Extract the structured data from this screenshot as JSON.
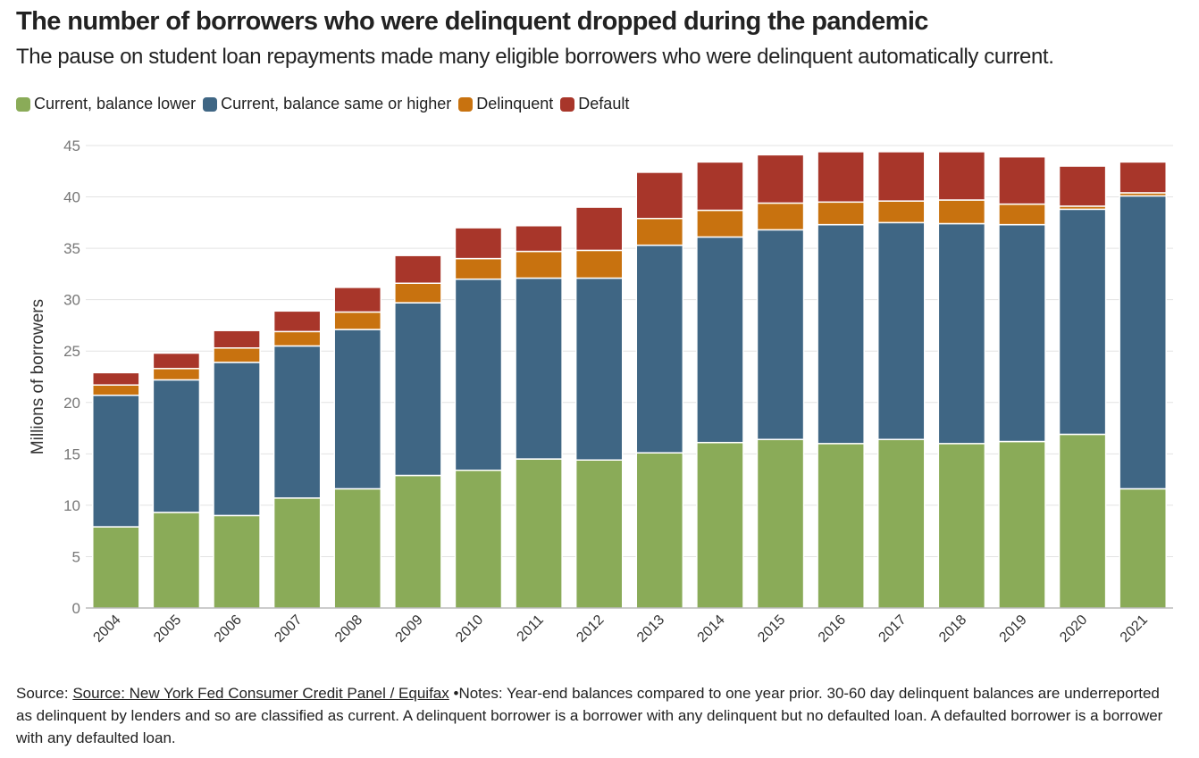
{
  "chart_data": {
    "type": "stacked_bar",
    "title": "The number of borrowers who were delinquent dropped during the pandemic",
    "subtitle": "The pause on student loan repayments made many eligible borrowers who were delinquent automatically current.",
    "y_label": "Millions of borrowers",
    "categories": [
      "2004",
      "2005",
      "2006",
      "2007",
      "2008",
      "2009",
      "2010",
      "2011",
      "2012",
      "2013",
      "2014",
      "2015",
      "2016",
      "2017",
      "2018",
      "2019",
      "2020",
      "2021"
    ],
    "series": [
      {
        "name": "Current, balance lower",
        "color": "#8aab58",
        "values": [
          7.9,
          9.3,
          9.0,
          10.7,
          11.6,
          12.9,
          13.4,
          14.5,
          14.4,
          15.1,
          16.1,
          16.4,
          16.0,
          16.4,
          16.0,
          16.2,
          16.9,
          11.6
        ]
      },
      {
        "name": "Current, balance same or higher",
        "color": "#3f6684",
        "values": [
          12.8,
          12.9,
          14.9,
          14.8,
          15.5,
          16.8,
          18.6,
          17.6,
          17.7,
          20.2,
          20.0,
          20.4,
          21.3,
          21.1,
          21.4,
          21.1,
          21.9,
          28.5
        ]
      },
      {
        "name": "Delinquent",
        "color": "#c8720f",
        "values": [
          1.0,
          1.1,
          1.4,
          1.4,
          1.7,
          1.9,
          2.0,
          2.6,
          2.7,
          2.6,
          2.6,
          2.6,
          2.2,
          2.1,
          2.3,
          2.0,
          0.3,
          0.3
        ]
      },
      {
        "name": "Default",
        "color": "#a8362a",
        "values": [
          1.2,
          1.5,
          1.7,
          2.0,
          2.4,
          2.7,
          3.0,
          2.5,
          4.2,
          4.5,
          4.7,
          4.7,
          4.9,
          4.8,
          4.7,
          4.6,
          3.9,
          3.0
        ]
      }
    ],
    "ylim": [
      0,
      45
    ],
    "yticks": [
      0,
      5,
      10,
      15,
      20,
      25,
      30,
      35,
      40,
      45
    ],
    "grid": true,
    "source_label": "Source:",
    "source": "Source: New York Fed Consumer Credit Panel / Equifax",
    "notes": "Notes: Year-end balances compared to one year prior. 30-60 day delinquent balances are underreported as delinquent by lenders and so are classified as current. A delinquent borrower is a borrower with any delinquent but no defaulted loan. A defaulted borrower is a borrower with any defaulted loan."
  }
}
